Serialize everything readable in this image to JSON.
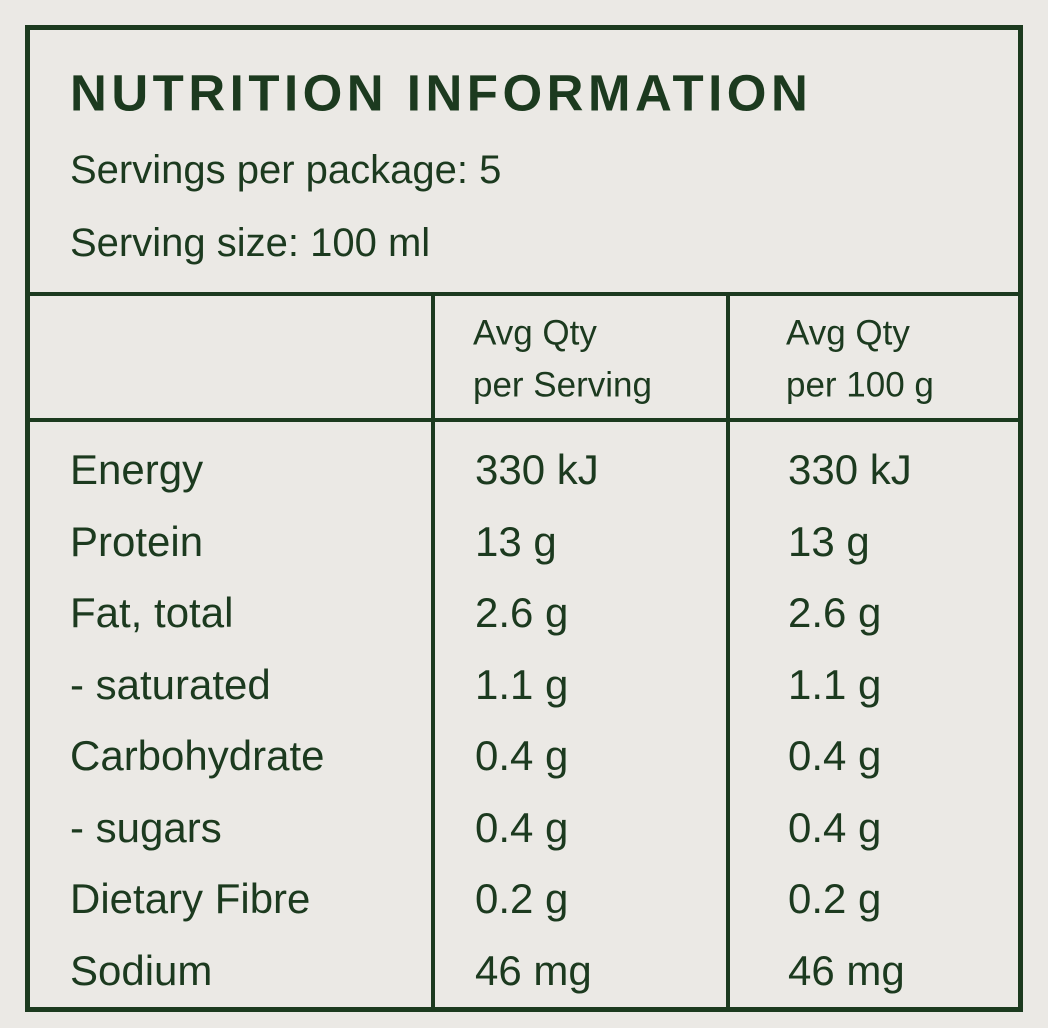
{
  "header": {
    "title": "NUTRITION INFORMATION",
    "servings": "Servings per package: 5",
    "serving_size": "Serving size: 100 ml"
  },
  "table": {
    "columns": [
      [
        "Avg Qty",
        "per Serving"
      ],
      [
        "Avg Qty",
        "per 100 g"
      ]
    ],
    "rows": [
      [
        "Energy",
        "330 kJ",
        "330 kJ"
      ],
      [
        "Protein",
        "13 g",
        "13 g"
      ],
      [
        "Fat, total",
        "2.6 g",
        "2.6 g"
      ],
      [
        "- saturated",
        "1.1 g",
        "1.1 g"
      ],
      [
        "Carbohydrate",
        "0.4 g",
        "0.4 g"
      ],
      [
        "- sugars",
        "0.4 g",
        "0.4 g"
      ],
      [
        "Dietary Fibre",
        "0.2 g",
        "0.2 g"
      ],
      [
        "Sodium",
        "46 mg",
        "46 mg"
      ]
    ]
  }
}
